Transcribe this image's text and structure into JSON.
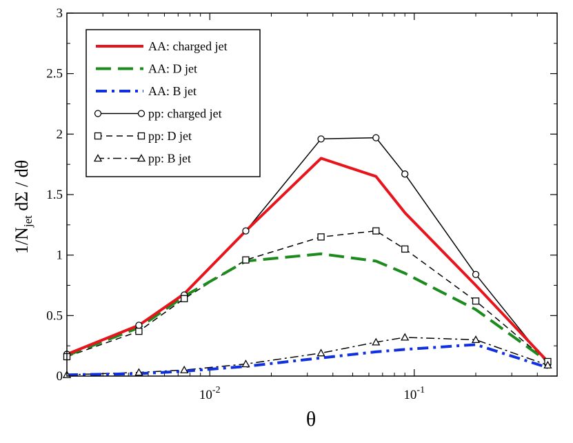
{
  "chart_data": {
    "type": "line",
    "title": "",
    "xlabel": "θ",
    "ylabel": {
      "prefix": "1/N",
      "subscript": "jet",
      "suffix": " dΣ / dθ"
    },
    "xscale": "log",
    "xlim": [
      0.002,
      0.5
    ],
    "ylim": [
      0,
      3
    ],
    "yticks": [
      {
        "value": 0,
        "label": "0"
      },
      {
        "value": 0.5,
        "label": "0.5"
      },
      {
        "value": 1,
        "label": "1"
      },
      {
        "value": 1.5,
        "label": "1.5"
      },
      {
        "value": 2,
        "label": "2"
      },
      {
        "value": 2.5,
        "label": "2.5"
      },
      {
        "value": 3,
        "label": "3"
      }
    ],
    "xticks_major": [
      {
        "value": 0.01,
        "base": "10",
        "exp": "-2"
      },
      {
        "value": 0.1,
        "base": "10",
        "exp": "-1"
      }
    ],
    "legend_position": "top-left",
    "series": [
      {
        "name": "AA:  charged jet",
        "color": "#e8141c",
        "dash": "solid",
        "width": 4,
        "marker": "none",
        "x": [
          0.002,
          0.0045,
          0.0075,
          0.015,
          0.035,
          0.065,
          0.09,
          0.2,
          0.45
        ],
        "y": [
          0.18,
          0.42,
          0.68,
          1.2,
          1.8,
          1.65,
          1.35,
          0.75,
          0.12
        ]
      },
      {
        "name": "AA:  D jet",
        "color": "#1d8a1d",
        "dash": "long-dash",
        "width": 4,
        "marker": "none",
        "x": [
          0.002,
          0.0045,
          0.0075,
          0.015,
          0.035,
          0.065,
          0.09,
          0.2,
          0.45
        ],
        "y": [
          0.17,
          0.4,
          0.66,
          0.95,
          1.01,
          0.95,
          0.85,
          0.55,
          0.12
        ]
      },
      {
        "name": "AA:  B jet",
        "color": "#1030e0",
        "dash": "dash-dot",
        "width": 4,
        "marker": "none",
        "x": [
          0.002,
          0.0045,
          0.0075,
          0.015,
          0.035,
          0.065,
          0.09,
          0.2,
          0.45
        ],
        "y": [
          0.01,
          0.02,
          0.04,
          0.08,
          0.15,
          0.2,
          0.22,
          0.26,
          0.07
        ]
      },
      {
        "name": "pp:  charged jet",
        "color": "#000000",
        "dash": "solid",
        "width": 1.5,
        "marker": "circle",
        "x": [
          0.002,
          0.0045,
          0.0075,
          0.015,
          0.035,
          0.065,
          0.09,
          0.2,
          0.45
        ],
        "y": [
          0.18,
          0.42,
          0.67,
          1.2,
          1.96,
          1.97,
          1.67,
          0.84,
          0.1
        ]
      },
      {
        "name": "pp:  D jet",
        "color": "#000000",
        "dash": "dashed",
        "width": 1.5,
        "marker": "square",
        "x": [
          0.002,
          0.0045,
          0.0075,
          0.015,
          0.035,
          0.065,
          0.09,
          0.2,
          0.45
        ],
        "y": [
          0.16,
          0.37,
          0.64,
          0.96,
          1.15,
          1.2,
          1.05,
          0.62,
          0.12
        ]
      },
      {
        "name": "pp:  B jet",
        "color": "#000000",
        "dash": "dash-dot",
        "width": 1.5,
        "marker": "triangle",
        "x": [
          0.002,
          0.0045,
          0.0075,
          0.015,
          0.035,
          0.065,
          0.09,
          0.2,
          0.45
        ],
        "y": [
          0.01,
          0.03,
          0.05,
          0.1,
          0.19,
          0.28,
          0.32,
          0.3,
          0.09
        ]
      }
    ]
  }
}
